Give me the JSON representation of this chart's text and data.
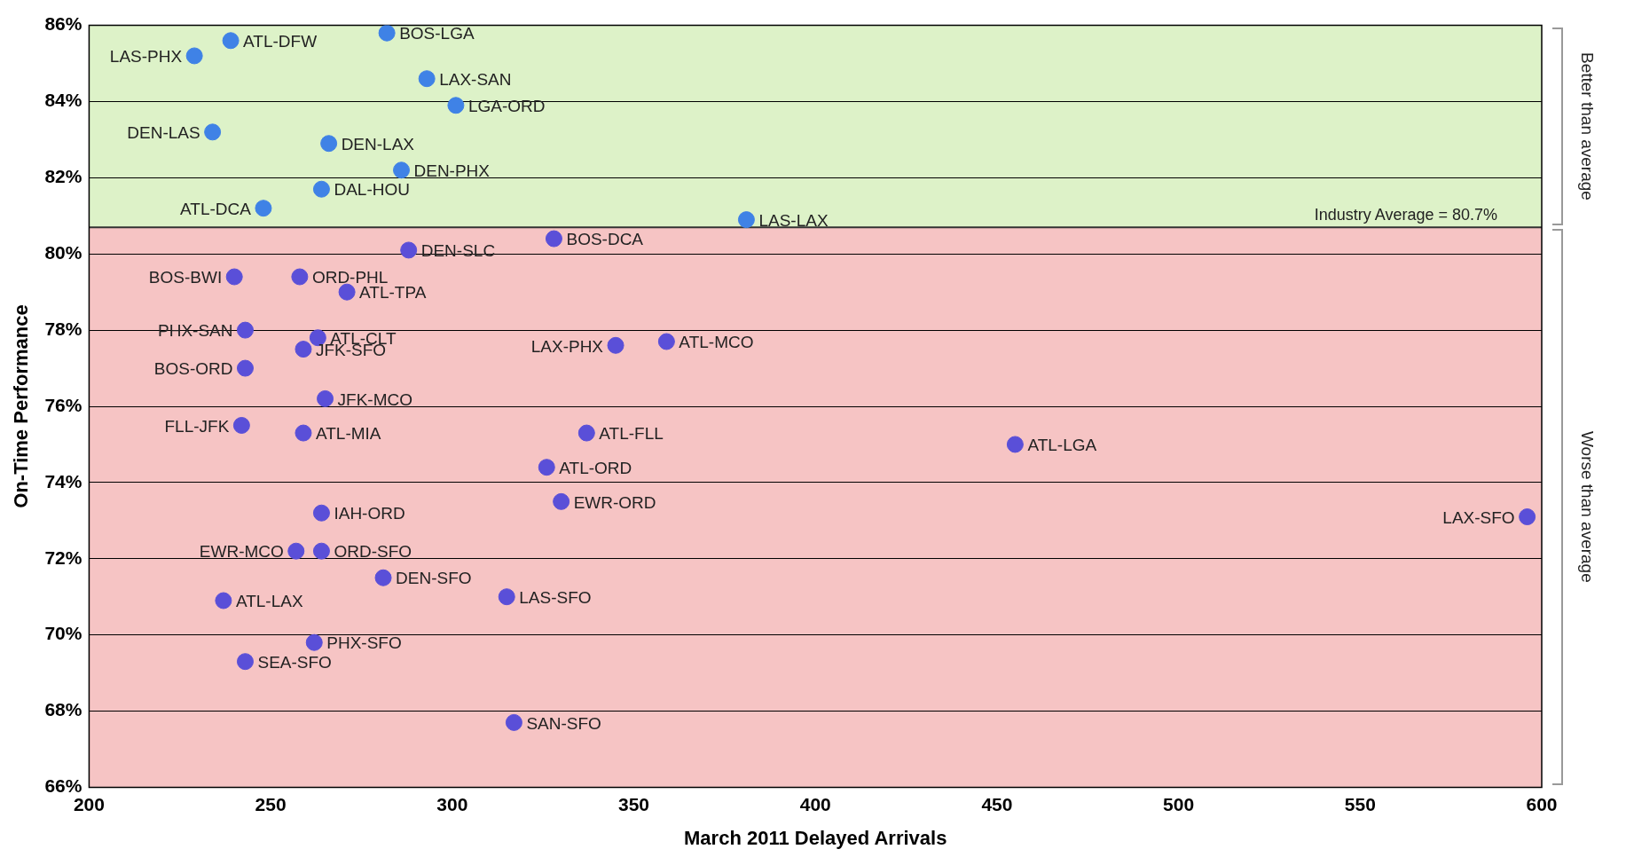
{
  "chart_data": {
    "type": "scatter",
    "xlabel": "March 2011 Delayed Arrivals",
    "ylabel": "On-Time Performance",
    "xlim": [
      200,
      600
    ],
    "xticks": [
      200,
      250,
      300,
      350,
      400,
      450,
      500,
      550,
      600
    ],
    "ylim": [
      66,
      86
    ],
    "yticks": [
      {
        "value": 66,
        "label": "66%"
      },
      {
        "value": 68,
        "label": "68%"
      },
      {
        "value": 70,
        "label": "70%"
      },
      {
        "value": 72,
        "label": "72%"
      },
      {
        "value": 74,
        "label": "74%"
      },
      {
        "value": 76,
        "label": "76%"
      },
      {
        "value": 78,
        "label": "78%"
      },
      {
        "value": 80,
        "label": "80%"
      },
      {
        "value": 82,
        "label": "82%"
      },
      {
        "value": 84,
        "label": "84%"
      },
      {
        "value": 86,
        "label": "86%"
      }
    ],
    "grid": "y",
    "marker": "circle",
    "series": [
      {
        "name": "ATL-DFW",
        "color": "#3f82e6",
        "x": [
          239
        ],
        "values": [
          85.6
        ]
      },
      {
        "name": "BOS-LGA",
        "color": "#3f82e6",
        "x": [
          282
        ],
        "values": [
          85.8
        ]
      },
      {
        "name": "LAS-PHX",
        "color": "#3f82e6",
        "x": [
          229
        ],
        "values": [
          85.2
        ]
      },
      {
        "name": "LAX-SAN",
        "color": "#3f82e6",
        "x": [
          293
        ],
        "values": [
          84.6
        ]
      },
      {
        "name": "LGA-ORD",
        "color": "#3f82e6",
        "x": [
          301
        ],
        "values": [
          83.9
        ]
      },
      {
        "name": "DEN-LAS",
        "color": "#3f82e6",
        "x": [
          234
        ],
        "values": [
          83.2
        ]
      },
      {
        "name": "DEN-LAX",
        "color": "#3f82e6",
        "x": [
          266
        ],
        "values": [
          82.9
        ]
      },
      {
        "name": "DEN-PHX",
        "color": "#3f82e6",
        "x": [
          286
        ],
        "values": [
          82.2
        ]
      },
      {
        "name": "DAL-HOU",
        "color": "#3f82e6",
        "x": [
          264
        ],
        "values": [
          81.7
        ]
      },
      {
        "name": "ATL-DCA",
        "color": "#3f82e6",
        "x": [
          248
        ],
        "values": [
          81.2
        ]
      },
      {
        "name": "LAS-LAX",
        "color": "#3f82e6",
        "x": [
          381
        ],
        "values": [
          80.9
        ]
      },
      {
        "name": "BOS-DCA",
        "color": "#5a4fd8",
        "x": [
          328
        ],
        "values": [
          80.4
        ]
      },
      {
        "name": "DEN-SLC",
        "color": "#5a4fd8",
        "x": [
          288
        ],
        "values": [
          80.1
        ]
      },
      {
        "name": "BOS-BWI",
        "color": "#5a4fd8",
        "x": [
          240
        ],
        "values": [
          79.4
        ]
      },
      {
        "name": "ORD-PHL",
        "color": "#5a4fd8",
        "x": [
          258
        ],
        "values": [
          79.4
        ]
      },
      {
        "name": "ATL-TPA",
        "color": "#5a4fd8",
        "x": [
          271
        ],
        "values": [
          79.0
        ]
      },
      {
        "name": "PHX-SAN",
        "color": "#5a4fd8",
        "x": [
          243
        ],
        "values": [
          78.0
        ]
      },
      {
        "name": "ATL-CLT",
        "color": "#5a4fd8",
        "x": [
          263
        ],
        "values": [
          77.8
        ]
      },
      {
        "name": "JFK-SFO",
        "color": "#5a4fd8",
        "x": [
          259
        ],
        "values": [
          77.5
        ]
      },
      {
        "name": "LAX-PHX",
        "color": "#5a4fd8",
        "x": [
          345
        ],
        "values": [
          77.6
        ]
      },
      {
        "name": "ATL-MCO",
        "color": "#5a4fd8",
        "x": [
          359
        ],
        "values": [
          77.7
        ]
      },
      {
        "name": "BOS-ORD",
        "color": "#5a4fd8",
        "x": [
          243
        ],
        "values": [
          77.0
        ]
      },
      {
        "name": "JFK-MCO",
        "color": "#5a4fd8",
        "x": [
          265
        ],
        "values": [
          76.2
        ]
      },
      {
        "name": "FLL-JFK",
        "color": "#5a4fd8",
        "x": [
          242
        ],
        "values": [
          75.5
        ]
      },
      {
        "name": "ATL-MIA",
        "color": "#5a4fd8",
        "x": [
          259
        ],
        "values": [
          75.3
        ]
      },
      {
        "name": "ATL-FLL",
        "color": "#5a4fd8",
        "x": [
          337
        ],
        "values": [
          75.3
        ]
      },
      {
        "name": "ATL-LGA",
        "color": "#5a4fd8",
        "x": [
          455
        ],
        "values": [
          75.0
        ]
      },
      {
        "name": "ATL-ORD",
        "color": "#5a4fd8",
        "x": [
          326
        ],
        "values": [
          74.4
        ]
      },
      {
        "name": "EWR-ORD",
        "color": "#5a4fd8",
        "x": [
          330
        ],
        "values": [
          73.5
        ]
      },
      {
        "name": "IAH-ORD",
        "color": "#5a4fd8",
        "x": [
          264
        ],
        "values": [
          73.2
        ]
      },
      {
        "name": "LAX-SFO",
        "color": "#5a4fd8",
        "x": [
          596
        ],
        "values": [
          73.1
        ]
      },
      {
        "name": "EWR-MCO",
        "color": "#5a4fd8",
        "x": [
          257
        ],
        "values": [
          72.2
        ]
      },
      {
        "name": "ORD-SFO",
        "color": "#5a4fd8",
        "x": [
          264
        ],
        "values": [
          72.2
        ]
      },
      {
        "name": "DEN-SFO",
        "color": "#5a4fd8",
        "x": [
          281
        ],
        "values": [
          71.5
        ]
      },
      {
        "name": "LAS-SFO",
        "color": "#5a4fd8",
        "x": [
          315
        ],
        "values": [
          71.0
        ]
      },
      {
        "name": "ATL-LAX",
        "color": "#5a4fd8",
        "x": [
          237
        ],
        "values": [
          70.9
        ]
      },
      {
        "name": "PHX-SFO",
        "color": "#5a4fd8",
        "x": [
          262
        ],
        "values": [
          69.8
        ]
      },
      {
        "name": "SEA-SFO",
        "color": "#5a4fd8",
        "x": [
          243
        ],
        "values": [
          69.3
        ]
      },
      {
        "name": "SAN-SFO",
        "color": "#5a4fd8",
        "x": [
          317
        ],
        "values": [
          67.7
        ]
      }
    ],
    "bands": [
      {
        "axis": "y",
        "from": 80.7,
        "to": 86,
        "label": "Better than average",
        "color": "#ddf2c8"
      },
      {
        "axis": "y",
        "from": 66,
        "to": 80.7,
        "label": "Worse than average",
        "color": "#f6c4c4"
      }
    ],
    "ref_lines": [
      {
        "axis": "y",
        "value": 80.7,
        "label": "Industry Average = 80.7%",
        "color": "#333333"
      }
    ]
  }
}
